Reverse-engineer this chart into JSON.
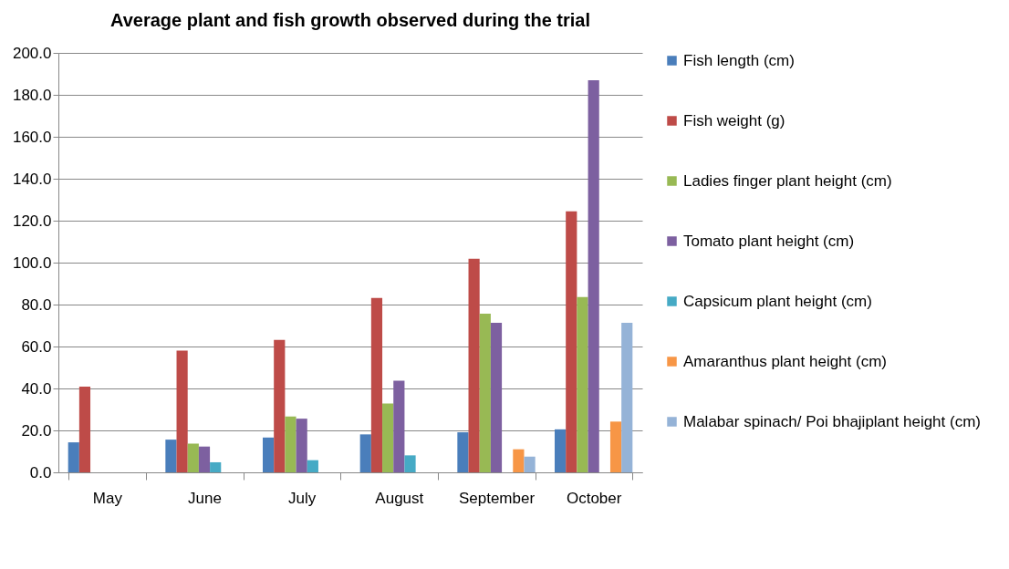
{
  "chart_data": {
    "type": "bar",
    "title": "Average plant and fish growth observed during the trial",
    "categories": [
      "May",
      "June",
      "July",
      "August",
      "September",
      "October"
    ],
    "series": [
      {
        "name": "Fish length (cm)",
        "color": "#4a7ebb",
        "values": [
          14.3,
          15.6,
          16.6,
          18.1,
          19.1,
          20.5
        ]
      },
      {
        "name": "Fish weight (g)",
        "color": "#be4b48",
        "values": [
          40.9,
          58.0,
          63.2,
          83.2,
          101.8,
          124.5
        ]
      },
      {
        "name": "Ladies finger plant height (cm)",
        "color": "#98b954",
        "values": [
          null,
          13.7,
          26.6,
          32.8,
          75.6,
          83.6
        ]
      },
      {
        "name": "Tomato plant height (cm)",
        "color": "#7d60a0",
        "values": [
          null,
          12.3,
          25.6,
          43.7,
          71.3,
          187.0
        ]
      },
      {
        "name": "Capsicum plant height (cm)",
        "color": "#46aac5",
        "values": [
          null,
          4.8,
          5.8,
          8.1,
          null,
          null
        ]
      },
      {
        "name": "Amaranthus plant height (cm)",
        "color": "#f79646",
        "values": [
          null,
          null,
          null,
          null,
          11.0,
          24.2
        ]
      },
      {
        "name": "Malabar spinach/ Poi bhajiplant height (cm)",
        "color": "#95b3d7",
        "values": [
          null,
          null,
          null,
          null,
          7.5,
          71.3
        ]
      }
    ],
    "ylim": [
      0,
      200
    ],
    "yticks": [
      {
        "value": 0,
        "label": "0.0"
      },
      {
        "value": 20,
        "label": "20.0"
      },
      {
        "value": 40,
        "label": "40.0"
      },
      {
        "value": 60,
        "label": "60.0"
      },
      {
        "value": 80,
        "label": "80.0"
      },
      {
        "value": 100,
        "label": "100.0"
      },
      {
        "value": 120,
        "label": "120.0"
      },
      {
        "value": 140,
        "label": "140.0"
      },
      {
        "value": 160,
        "label": "160.0"
      },
      {
        "value": 180,
        "label": "180.0"
      },
      {
        "value": 200,
        "label": "200.0"
      }
    ],
    "grid": "y",
    "legend": "right"
  }
}
